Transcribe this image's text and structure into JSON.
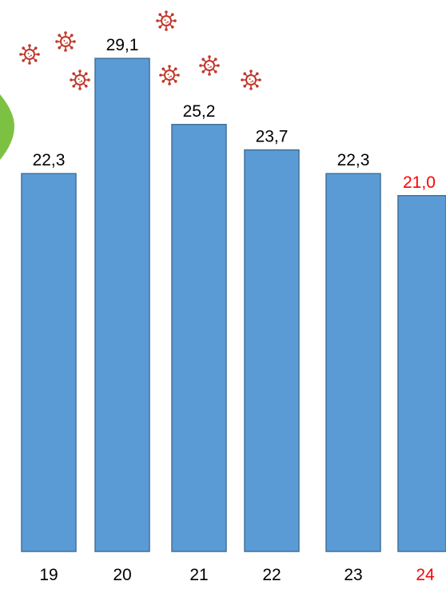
{
  "chart_data": {
    "type": "bar",
    "title": "",
    "xlabel": "",
    "ylabel": "",
    "ylim": [
      0,
      30
    ],
    "grid": false,
    "categories": [
      "19",
      "20",
      "21",
      "22",
      "23",
      "24"
    ],
    "values": [
      22.3,
      29.1,
      25.2,
      23.7,
      22.3,
      21.0
    ],
    "data_labels": [
      "22,3",
      "29,1",
      "25,2",
      "23,7",
      "22,3",
      "21,0"
    ],
    "highlight_index": 5,
    "colors": {
      "bar": "#5b9bd5",
      "bar_border": "#41719c",
      "text": "#000000",
      "highlight": "#ff0000",
      "virus": "#c0392b",
      "edge_shape": "#7dc142"
    },
    "decorations": [
      "virus-icon"
    ]
  }
}
